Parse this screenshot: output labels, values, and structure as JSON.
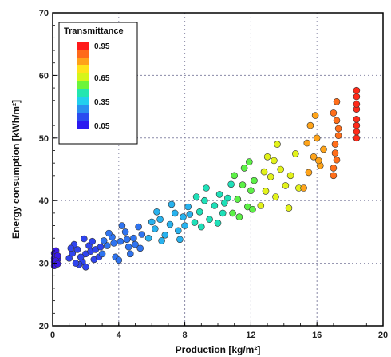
{
  "chart_data": {
    "type": "scatter",
    "xlabel": "Production [kg/m²]",
    "ylabel": "Energy consumption [kWh/m²]",
    "xlim": [
      0,
      20
    ],
    "ylim": [
      20,
      70
    ],
    "x_ticks": [
      "0",
      "4",
      "8",
      "12",
      "16",
      "20"
    ],
    "y_ticks": [
      "20",
      "30",
      "40",
      "50",
      "60",
      "70"
    ],
    "grid": "dashed",
    "legend": {
      "title": "Transmittance",
      "placement": "top-left",
      "labels": [
        "0.95",
        "0.65",
        "0.35",
        "0.05"
      ],
      "colorbar": [
        "#ff1a1a",
        "#ff6a1a",
        "#ffa21a",
        "#ffe31a",
        "#d6f51a",
        "#6cf53a",
        "#22e6b0",
        "#22cfee",
        "#2a8ff0",
        "#2a4cf0",
        "#2a1af0"
      ]
    },
    "series": [
      {
        "color": "#3a18e8",
        "points": [
          [
            0.1,
            30.2
          ],
          [
            0.2,
            31.0
          ],
          [
            0.1,
            30.8
          ],
          [
            0.2,
            29.8
          ],
          [
            0.3,
            30.6
          ],
          [
            0.1,
            31.6
          ],
          [
            0.2,
            32.0
          ],
          [
            0.3,
            31.2
          ],
          [
            0.1,
            29.6
          ],
          [
            0.2,
            30.4
          ],
          [
            0.3,
            29.9
          ]
        ]
      },
      {
        "color": "#2f44ee",
        "points": [
          [
            1.0,
            30.8
          ],
          [
            1.2,
            31.6
          ],
          [
            1.5,
            32.2
          ],
          [
            1.8,
            30.2
          ],
          [
            1.6,
            29.8
          ],
          [
            2.0,
            31.5
          ],
          [
            2.2,
            32.8
          ],
          [
            1.3,
            33.0
          ],
          [
            2.5,
            30.6
          ],
          [
            2.4,
            33.5
          ],
          [
            2.8,
            31.0
          ],
          [
            1.7,
            31.0
          ],
          [
            2.0,
            29.4
          ],
          [
            2.3,
            31.9
          ],
          [
            1.1,
            32.4
          ],
          [
            2.6,
            32.2
          ],
          [
            1.9,
            33.9
          ],
          [
            2.9,
            32.6
          ],
          [
            1.4,
            30.0
          ]
        ]
      },
      {
        "color": "#2f74f0",
        "points": [
          [
            3.0,
            31.5
          ],
          [
            3.3,
            32.8
          ],
          [
            3.6,
            34.2
          ],
          [
            3.8,
            31.0
          ],
          [
            4.1,
            33.5
          ],
          [
            4.4,
            35.0
          ],
          [
            4.0,
            30.5
          ],
          [
            4.6,
            32.6
          ],
          [
            4.9,
            34.0
          ],
          [
            5.2,
            35.8
          ],
          [
            3.4,
            34.8
          ],
          [
            4.2,
            36.0
          ],
          [
            5.0,
            33.0
          ],
          [
            3.7,
            33.2
          ],
          [
            4.7,
            31.5
          ],
          [
            5.4,
            34.6
          ],
          [
            3.1,
            33.6
          ],
          [
            4.5,
            33.8
          ],
          [
            5.3,
            32.4
          ]
        ]
      },
      {
        "color": "#28b2ee",
        "points": [
          [
            5.8,
            34.0
          ],
          [
            6.2,
            35.5
          ],
          [
            6.5,
            37.0
          ],
          [
            6.8,
            34.5
          ],
          [
            7.1,
            36.2
          ],
          [
            7.4,
            38.0
          ],
          [
            6.0,
            36.6
          ],
          [
            7.6,
            35.2
          ],
          [
            7.9,
            37.4
          ],
          [
            8.2,
            39.0
          ],
          [
            6.6,
            33.6
          ],
          [
            7.2,
            39.4
          ],
          [
            8.0,
            36.0
          ],
          [
            6.3,
            38.2
          ],
          [
            7.7,
            33.8
          ],
          [
            8.3,
            37.8
          ]
        ]
      },
      {
        "color": "#1ee0b8",
        "points": [
          [
            8.6,
            36.5
          ],
          [
            8.9,
            38.2
          ],
          [
            9.2,
            40.0
          ],
          [
            9.5,
            37.0
          ],
          [
            9.8,
            39.2
          ],
          [
            10.1,
            41.0
          ],
          [
            8.7,
            40.6
          ],
          [
            10.3,
            38.0
          ],
          [
            10.6,
            40.4
          ],
          [
            9.3,
            42.0
          ],
          [
            10.0,
            36.4
          ],
          [
            10.8,
            42.6
          ],
          [
            9.0,
            35.8
          ],
          [
            10.4,
            39.6
          ]
        ]
      },
      {
        "color": "#5cf046",
        "points": [
          [
            10.9,
            38.0
          ],
          [
            11.2,
            40.2
          ],
          [
            11.5,
            42.5
          ],
          [
            11.8,
            39.0
          ],
          [
            12.0,
            41.6
          ],
          [
            11.0,
            44.0
          ],
          [
            11.6,
            45.2
          ],
          [
            12.2,
            43.2
          ],
          [
            11.3,
            37.4
          ],
          [
            11.9,
            46.2
          ],
          [
            12.1,
            38.6
          ]
        ]
      },
      {
        "color": "#e2f21a",
        "points": [
          [
            12.6,
            39.2
          ],
          [
            12.9,
            41.5
          ],
          [
            13.2,
            43.8
          ],
          [
            13.5,
            40.6
          ],
          [
            13.8,
            45.0
          ],
          [
            14.1,
            42.4
          ],
          [
            13.0,
            47.0
          ],
          [
            14.4,
            44.0
          ],
          [
            14.7,
            47.5
          ],
          [
            13.6,
            49.0
          ],
          [
            14.3,
            38.8
          ],
          [
            12.8,
            44.6
          ],
          [
            14.9,
            42.0
          ],
          [
            13.4,
            46.4
          ]
        ]
      },
      {
        "color": "#ffa41a",
        "points": [
          [
            15.2,
            42.0
          ],
          [
            15.5,
            44.5
          ],
          [
            15.8,
            47.0
          ],
          [
            16.0,
            50.0
          ],
          [
            16.2,
            45.6
          ],
          [
            15.6,
            52.0
          ],
          [
            16.4,
            48.2
          ],
          [
            15.9,
            53.6
          ],
          [
            16.1,
            46.4
          ],
          [
            15.4,
            49.2
          ]
        ]
      },
      {
        "color": "#ff6e1a",
        "points": [
          [
            17.0,
            44.0
          ],
          [
            17.2,
            46.5
          ],
          [
            17.1,
            49.0
          ],
          [
            17.3,
            51.5
          ],
          [
            17.0,
            54.0
          ],
          [
            17.2,
            55.8
          ],
          [
            17.1,
            47.6
          ],
          [
            17.3,
            50.4
          ],
          [
            17.2,
            52.8
          ],
          [
            17.0,
            45.2
          ]
        ]
      },
      {
        "color": "#ff2a1a",
        "points": [
          [
            18.4,
            50.0
          ],
          [
            18.4,
            52.0
          ],
          [
            18.4,
            53.0
          ],
          [
            18.4,
            54.6
          ],
          [
            18.4,
            56.6
          ],
          [
            18.4,
            57.6
          ],
          [
            18.4,
            51.0
          ],
          [
            18.4,
            55.4
          ]
        ]
      }
    ]
  }
}
